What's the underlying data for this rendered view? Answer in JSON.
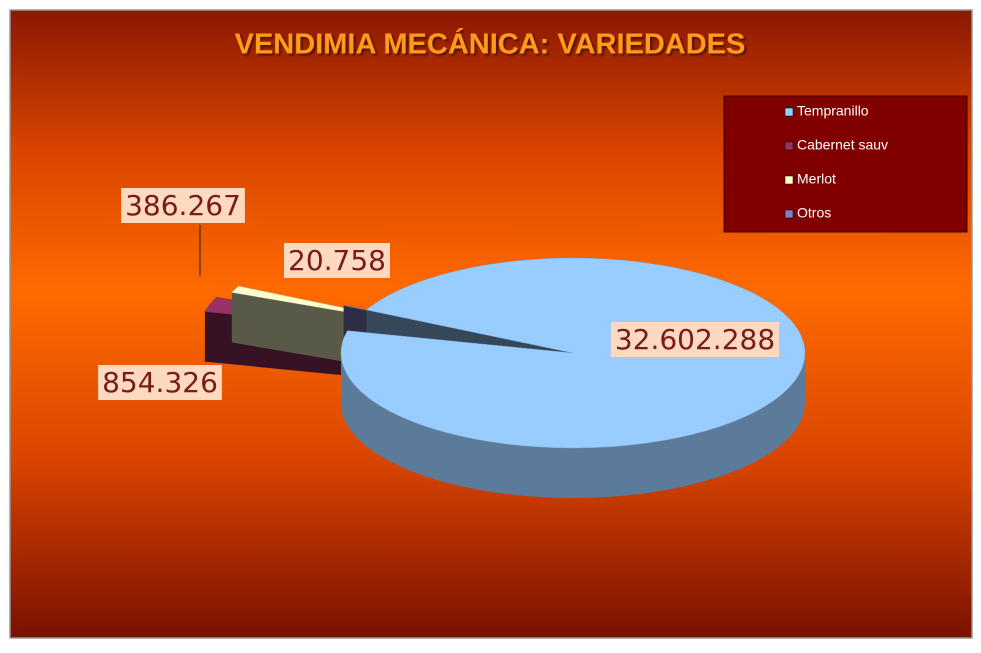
{
  "chart_data": {
    "type": "pie3d",
    "title": "VENDIMIA MECÁNICA: VARIEDADES",
    "categories": [
      "Tempranillo",
      "Cabernet sauv",
      "Merlot",
      "Otros"
    ],
    "values": [
      32602288,
      854326,
      386267,
      20758
    ],
    "value_labels": [
      "32.602.288",
      "854.326",
      "386.267",
      "20.758"
    ],
    "colors": [
      "#99ccff",
      "#993366",
      "#ffffcc",
      "#8080c0"
    ],
    "legend": "top-right"
  }
}
